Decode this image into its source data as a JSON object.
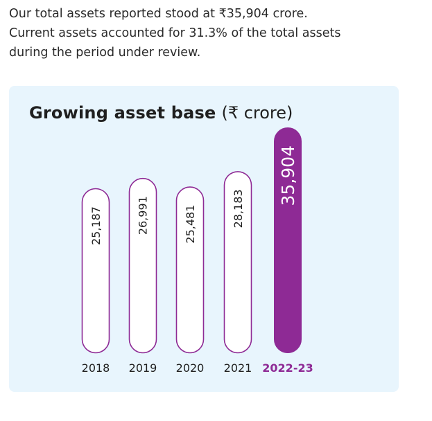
{
  "intro": {
    "lines": [
      "Our total assets reported stood at ₹35,904 crore.",
      "Current assets accounted for 31.3% of the total assets",
      "during the period under review."
    ]
  },
  "colors": {
    "card_background": "#e8f5fd",
    "bar_outline": "#8e2a95",
    "bar_fill": "#ffffff",
    "highlight_fill": "#8e2a95",
    "highlight_text": "#ffffff",
    "highlight_category_label": "#8e2a95",
    "text": "#1f1f1f"
  },
  "chart_data": {
    "type": "bar",
    "title": "Growing asset base",
    "unit": "(₹ crore)",
    "orientation": "vertical",
    "value_labels": "rotated inside bars",
    "highlight_index": 4,
    "categories": [
      "2018",
      "2019",
      "2020",
      "2021",
      "2022-23"
    ],
    "values": [
      25187,
      26991,
      25481,
      28183,
      35904
    ],
    "value_labels_text": [
      "25,187",
      "26,991",
      "25,481",
      "28,183",
      "35,904"
    ]
  }
}
